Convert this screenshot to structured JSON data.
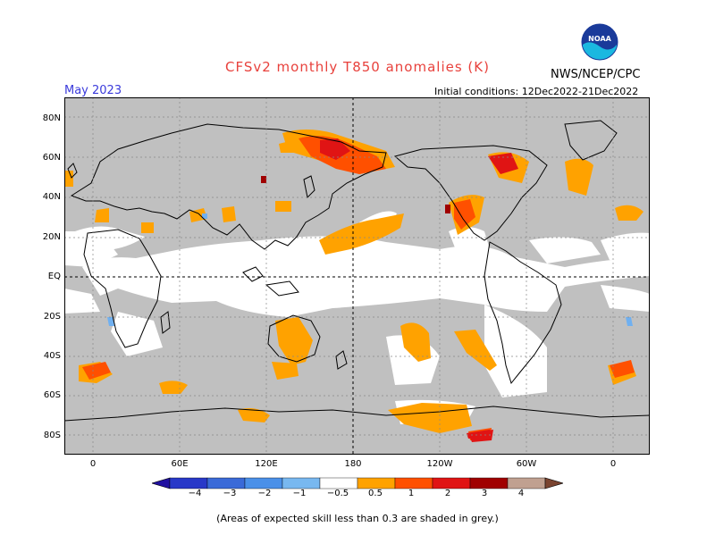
{
  "header": {
    "title": "CFSv2 monthly T850 anomalies (K)",
    "agency": "NWS/NCEP/CPC",
    "forecast_month": "May 2023",
    "initial_conditions": "Initial conditions: 12Dec2022-21Dec2022",
    "logo_text": "NOAA"
  },
  "map": {
    "lat_labels": [
      "80N",
      "60N",
      "40N",
      "20N",
      "EQ",
      "20S",
      "40S",
      "60S",
      "80S"
    ],
    "lon_labels": [
      "0",
      "60E",
      "120E",
      "180",
      "120W",
      "60W",
      "0"
    ],
    "colors": {
      "skill_low_grey": "#c0c0c0",
      "neutral": "#ffffff",
      "warm_0_5": "#ffa500",
      "warm_1": "#ff4500",
      "warm_2": "#e01010",
      "warm_3": "#a50000",
      "warm_4": "#c8a098",
      "cool_neg0_5": "#70b0f0"
    }
  },
  "colorbar": {
    "labels": [
      "−4",
      "−3",
      "−2",
      "−1",
      "−0.5",
      "0.5",
      "1",
      "2",
      "3",
      "4"
    ],
    "colors": [
      "#2010a0",
      "#2838c8",
      "#3a6ad8",
      "#4a90e8",
      "#78b8f0",
      "#ffffff",
      "#ffa200",
      "#ff5000",
      "#e01414",
      "#a00000",
      "#c0a090",
      "#7a4430"
    ]
  },
  "footer": {
    "note": "(Areas of expected skill less than 0.3 are shaded in grey.)"
  }
}
